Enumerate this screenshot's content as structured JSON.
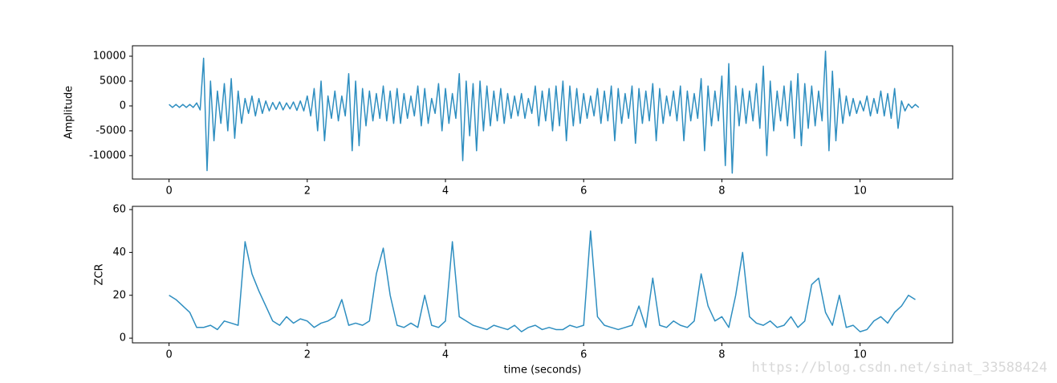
{
  "chart_data": [
    {
      "type": "line",
      "ylabel": "Amplitude",
      "color": "#2e8ec0",
      "xlim": [
        -0.53,
        11.34
      ],
      "ylim": [
        -14700,
        12100
      ],
      "xticks": [
        0,
        2,
        4,
        6,
        8,
        10
      ],
      "yticks": [
        -10000,
        -5000,
        0,
        5000,
        10000
      ],
      "x": [
        0,
        0.05,
        0.1,
        0.15,
        0.2,
        0.25,
        0.3,
        0.35,
        0.4,
        0.45,
        0.5,
        0.55,
        0.6,
        0.65,
        0.7,
        0.75,
        0.8,
        0.85,
        0.9,
        0.95,
        1.0,
        1.05,
        1.1,
        1.15,
        1.2,
        1.25,
        1.3,
        1.35,
        1.4,
        1.45,
        1.5,
        1.55,
        1.6,
        1.65,
        1.7,
        1.75,
        1.8,
        1.85,
        1.9,
        1.95,
        2.0,
        2.05,
        2.1,
        2.15,
        2.2,
        2.25,
        2.3,
        2.35,
        2.4,
        2.45,
        2.5,
        2.55,
        2.6,
        2.65,
        2.7,
        2.75,
        2.8,
        2.85,
        2.9,
        2.95,
        3.0,
        3.05,
        3.1,
        3.15,
        3.2,
        3.25,
        3.3,
        3.35,
        3.4,
        3.45,
        3.5,
        3.55,
        3.6,
        3.65,
        3.7,
        3.75,
        3.8,
        3.85,
        3.9,
        3.95,
        4.0,
        4.05,
        4.1,
        4.15,
        4.2,
        4.25,
        4.3,
        4.35,
        4.4,
        4.45,
        4.5,
        4.55,
        4.6,
        4.65,
        4.7,
        4.75,
        4.8,
        4.85,
        4.9,
        4.95,
        5.0,
        5.05,
        5.1,
        5.15,
        5.2,
        5.25,
        5.3,
        5.35,
        5.4,
        5.45,
        5.5,
        5.55,
        5.6,
        5.65,
        5.7,
        5.75,
        5.8,
        5.85,
        5.9,
        5.95,
        6.0,
        6.05,
        6.1,
        6.15,
        6.2,
        6.25,
        6.3,
        6.35,
        6.4,
        6.45,
        6.5,
        6.55,
        6.6,
        6.65,
        6.7,
        6.75,
        6.8,
        6.85,
        6.9,
        6.95,
        7.0,
        7.05,
        7.1,
        7.15,
        7.2,
        7.25,
        7.3,
        7.35,
        7.4,
        7.45,
        7.5,
        7.55,
        7.6,
        7.65,
        7.7,
        7.75,
        7.8,
        7.85,
        7.9,
        7.95,
        8.0,
        8.05,
        8.1,
        8.15,
        8.2,
        8.25,
        8.3,
        8.35,
        8.4,
        8.45,
        8.5,
        8.55,
        8.6,
        8.65,
        8.7,
        8.75,
        8.8,
        8.85,
        8.9,
        8.95,
        9.0,
        9.05,
        9.1,
        9.15,
        9.2,
        9.25,
        9.3,
        9.35,
        9.4,
        9.45,
        9.5,
        9.55,
        9.6,
        9.65,
        9.7,
        9.75,
        9.8,
        9.85,
        9.9,
        9.95,
        10.0,
        10.05,
        10.1,
        10.15,
        10.2,
        10.25,
        10.3,
        10.35,
        10.4,
        10.45,
        10.5,
        10.55,
        10.6,
        10.65,
        10.7,
        10.75,
        10.8,
        10.85
      ],
      "values": [
        300,
        -300,
        300,
        -300,
        300,
        -300,
        300,
        -300,
        600,
        -800,
        9600,
        -13000,
        5000,
        -7000,
        3000,
        -3500,
        4500,
        -5000,
        5500,
        -6500,
        3000,
        -3500,
        1500,
        -1500,
        2000,
        -2000,
        1500,
        -1500,
        1000,
        -1000,
        700,
        -700,
        800,
        -800,
        600,
        -600,
        800,
        -900,
        1000,
        -1000,
        2000,
        -2000,
        3500,
        -5000,
        5000,
        -7000,
        2000,
        -2500,
        3000,
        -3000,
        2000,
        -2000,
        6500,
        -9000,
        5000,
        -8000,
        3500,
        -4000,
        3000,
        -3000,
        2500,
        -2500,
        4000,
        -3000,
        3000,
        -3500,
        3500,
        -3500,
        2500,
        -2500,
        2000,
        -2000,
        4000,
        -4000,
        3500,
        -3500,
        1500,
        -1500,
        4500,
        -5000,
        3500,
        -3500,
        2500,
        -2500,
        6500,
        -11000,
        5000,
        -6000,
        4500,
        -9000,
        5000,
        -5000,
        4000,
        -4000,
        3000,
        -3000,
        3500,
        -3500,
        2500,
        -2500,
        2000,
        -2000,
        2500,
        -2500,
        1500,
        -1500,
        4000,
        -4000,
        3000,
        -3000,
        3500,
        -5000,
        4000,
        -4000,
        5000,
        -7000,
        4000,
        -4000,
        3500,
        -3500,
        2500,
        -2500,
        2000,
        -2000,
        3500,
        -3500,
        3000,
        -3000,
        4000,
        -7000,
        3500,
        -3500,
        2500,
        -2500,
        4000,
        -7500,
        3500,
        -3500,
        3000,
        -3000,
        4500,
        -7000,
        3500,
        -3500,
        2000,
        -2000,
        3000,
        -3000,
        4000,
        -7000,
        3000,
        -3000,
        2500,
        -2500,
        5500,
        -9000,
        4000,
        -4000,
        3000,
        -3000,
        6000,
        -12000,
        8500,
        -13500,
        4000,
        -4000,
        3500,
        -3500,
        3000,
        -3000,
        4500,
        -4500,
        8000,
        -10000,
        5000,
        -5000,
        3000,
        -3000,
        4000,
        -4000,
        5000,
        -6500,
        6500,
        -8000,
        4500,
        -4500,
        4000,
        -4000,
        3000,
        -3000,
        11000,
        -9000,
        7000,
        -7000,
        3500,
        -3500,
        2000,
        -2000,
        1500,
        -1500,
        1000,
        -1000,
        2000,
        -2000,
        1500,
        -1500,
        3000,
        -2000,
        2500,
        -2500,
        3500,
        -4500,
        1000,
        -1000,
        400,
        -400,
        300,
        -300
      ]
    },
    {
      "type": "line",
      "ylabel": "ZCR",
      "xlabel": "time (seconds)",
      "color": "#2e8ec0",
      "xlim": [
        -0.53,
        11.34
      ],
      "ylim": [
        -2.2,
        61.5
      ],
      "xticks": [
        0,
        2,
        4,
        6,
        8,
        10
      ],
      "yticks": [
        0,
        20,
        40,
        60
      ],
      "x": [
        0,
        0.1,
        0.2,
        0.3,
        0.4,
        0.5,
        0.6,
        0.7,
        0.8,
        0.9,
        1.0,
        1.1,
        1.2,
        1.3,
        1.4,
        1.5,
        1.6,
        1.7,
        1.8,
        1.9,
        2.0,
        2.1,
        2.2,
        2.3,
        2.4,
        2.5,
        2.6,
        2.7,
        2.8,
        2.9,
        3.0,
        3.1,
        3.2,
        3.3,
        3.4,
        3.5,
        3.6,
        3.7,
        3.8,
        3.9,
        4.0,
        4.1,
        4.2,
        4.3,
        4.4,
        4.5,
        4.6,
        4.7,
        4.8,
        4.9,
        5.0,
        5.1,
        5.2,
        5.3,
        5.4,
        5.5,
        5.6,
        5.7,
        5.8,
        5.9,
        6.0,
        6.1,
        6.2,
        6.3,
        6.4,
        6.5,
        6.6,
        6.7,
        6.8,
        6.9,
        7.0,
        7.1,
        7.2,
        7.3,
        7.4,
        7.5,
        7.6,
        7.7,
        7.8,
        7.9,
        8.0,
        8.1,
        8.2,
        8.3,
        8.4,
        8.5,
        8.6,
        8.7,
        8.8,
        8.9,
        9.0,
        9.1,
        9.2,
        9.3,
        9.4,
        9.5,
        9.6,
        9.7,
        9.8,
        9.9,
        10.0,
        10.1,
        10.2,
        10.3,
        10.4,
        10.5,
        10.6,
        10.7,
        10.8
      ],
      "values": [
        20,
        18,
        15,
        12,
        5,
        5,
        6,
        4,
        8,
        7,
        6,
        45,
        30,
        22,
        15,
        8,
        6,
        10,
        7,
        9,
        8,
        5,
        7,
        8,
        10,
        18,
        6,
        7,
        6,
        8,
        30,
        42,
        20,
        6,
        5,
        7,
        5,
        20,
        6,
        5,
        8,
        45,
        10,
        8,
        6,
        5,
        4,
        6,
        5,
        4,
        6,
        3,
        5,
        6,
        4,
        5,
        4,
        4,
        6,
        5,
        6,
        50,
        10,
        6,
        5,
        4,
        5,
        6,
        15,
        5,
        28,
        6,
        5,
        8,
        6,
        5,
        8,
        30,
        15,
        8,
        10,
        5,
        20,
        40,
        10,
        7,
        6,
        8,
        5,
        6,
        10,
        5,
        8,
        25,
        28,
        12,
        6,
        20,
        5,
        6,
        3,
        4,
        8,
        10,
        7,
        12,
        15,
        20,
        18
      ]
    }
  ],
  "watermark": "https://blog.csdn.net/sinat_33588424"
}
